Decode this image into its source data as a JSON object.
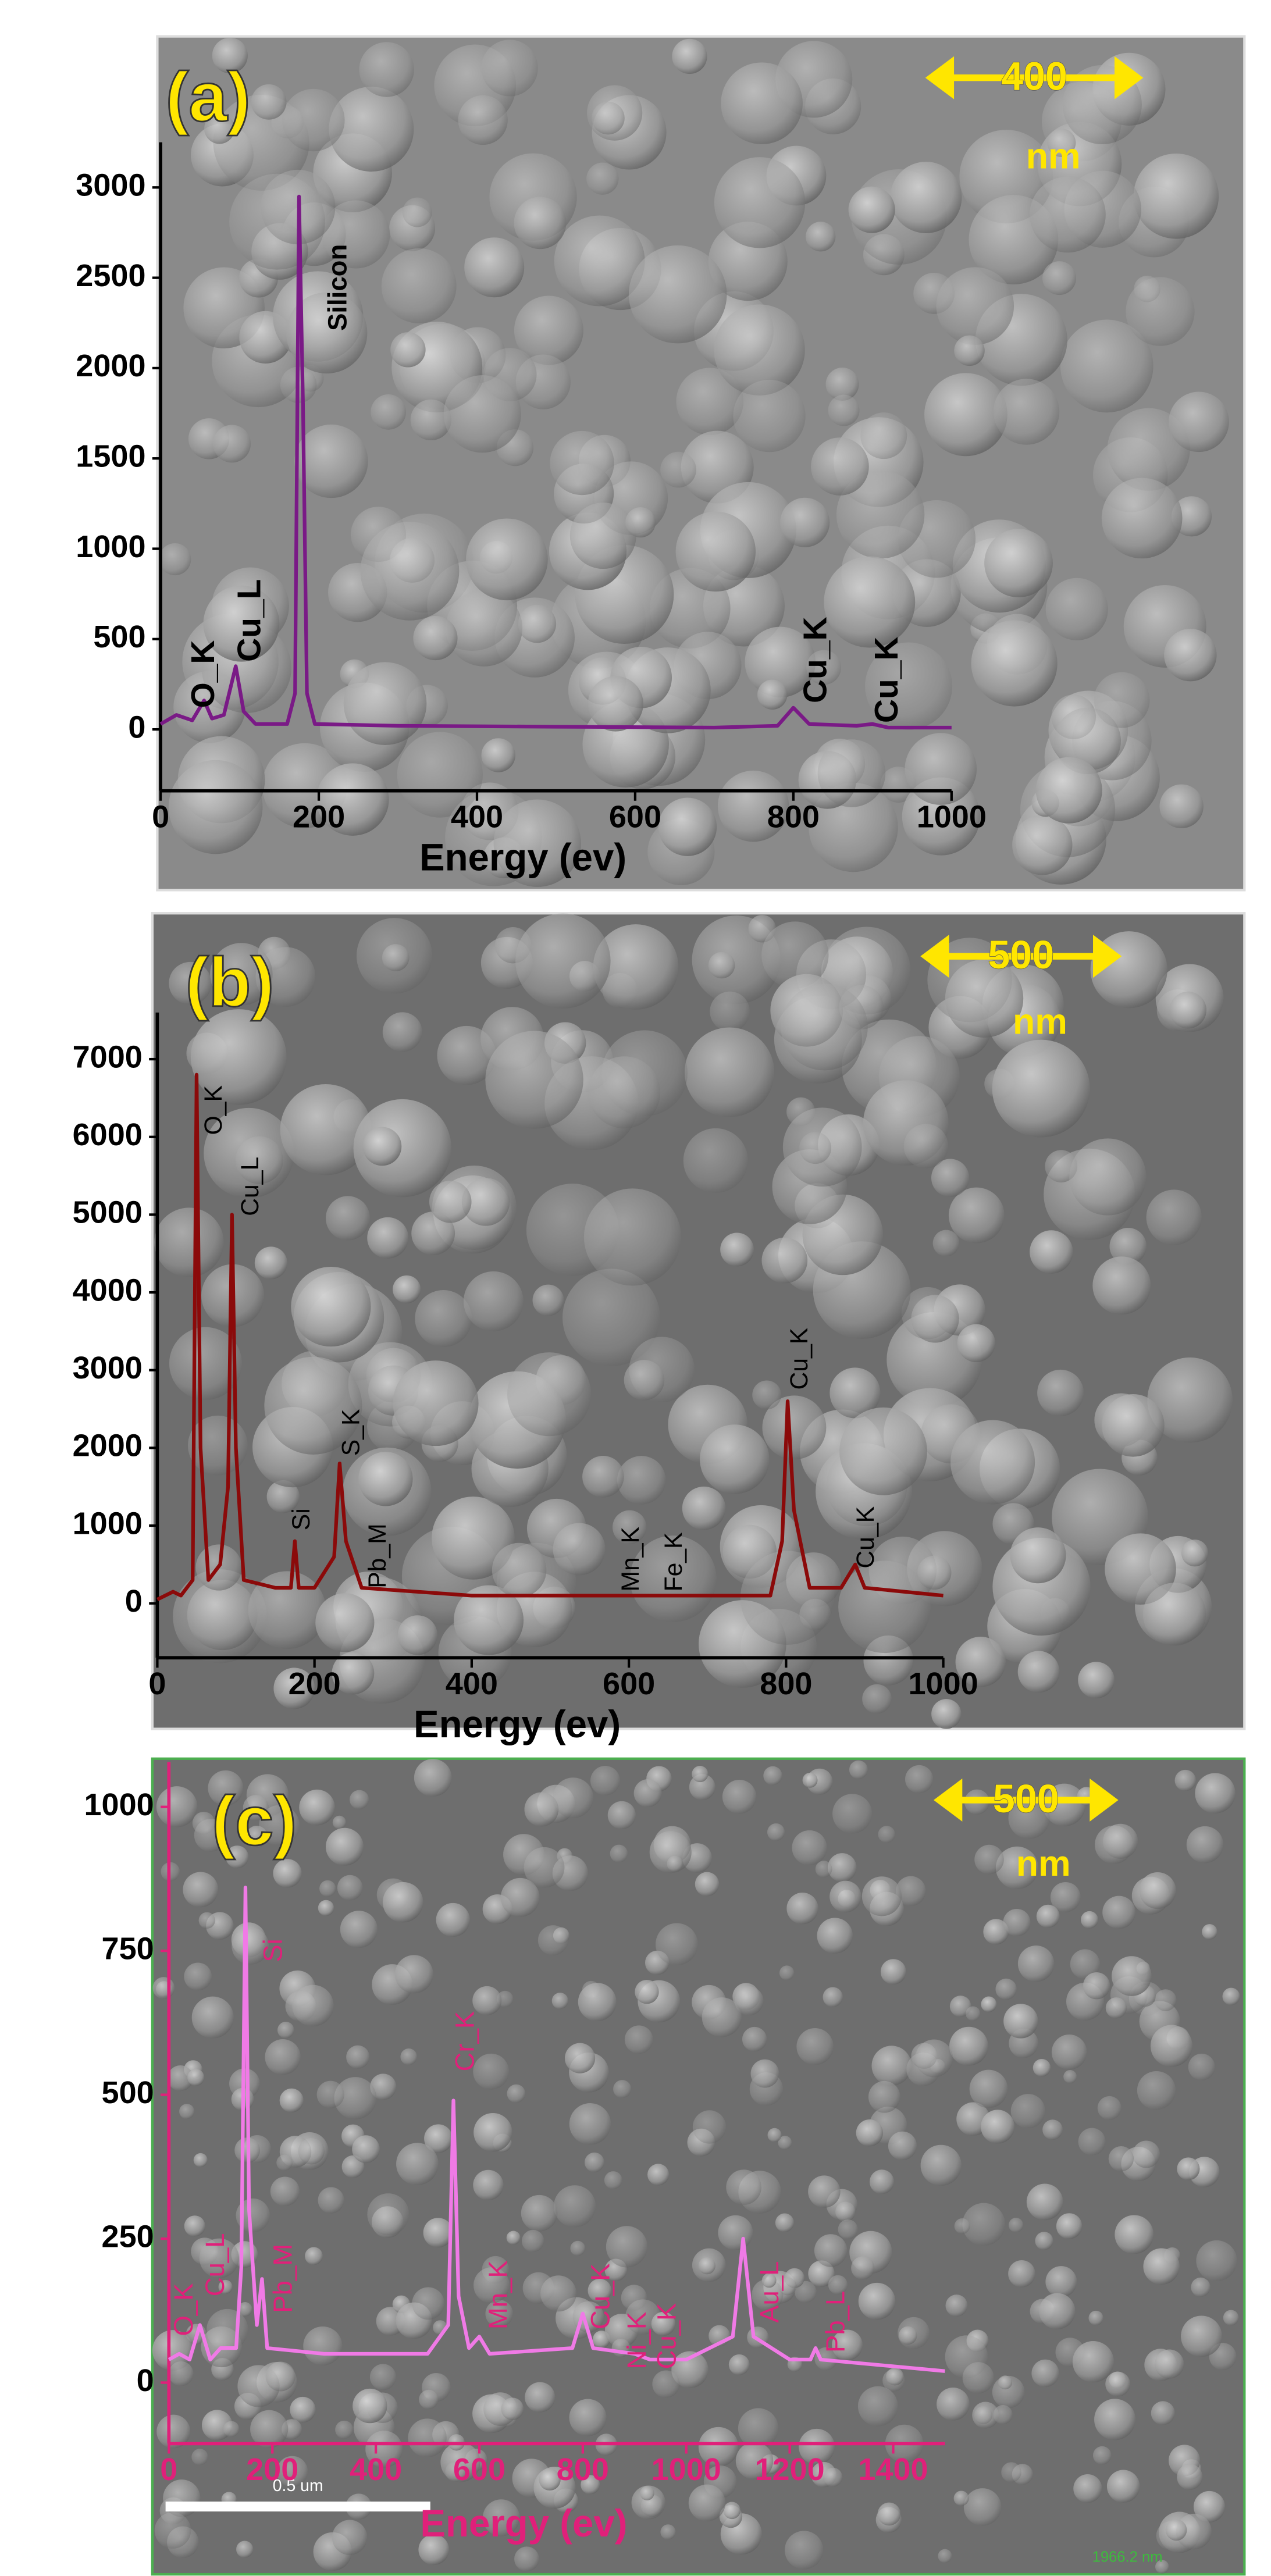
{
  "chart_data": [
    {
      "type": "line",
      "panel_label": "(a)",
      "scale_label": "400",
      "scale_unit": "nm",
      "x_label": "Energy (ev)",
      "color": "#7a1a86",
      "x": [
        0,
        20,
        40,
        55,
        65,
        80,
        95,
        105,
        120,
        160,
        170,
        175,
        180,
        185,
        195,
        300,
        500,
        700,
        780,
        800,
        820,
        880,
        900,
        920,
        1000
      ],
      "values": [
        30,
        80,
        50,
        160,
        60,
        80,
        350,
        100,
        30,
        30,
        200,
        2950,
        1800,
        200,
        30,
        20,
        15,
        10,
        20,
        120,
        30,
        20,
        30,
        10,
        10
      ],
      "xlim": [
        0,
        1000
      ],
      "ylim": [
        -340,
        3250
      ],
      "xticks": [
        0,
        200,
        400,
        600,
        800,
        1000
      ],
      "yticks": [
        0,
        500,
        1000,
        1500,
        2000,
        2500,
        3000
      ],
      "annotations": [
        "O_K",
        "Cu_L",
        "Silicon",
        "Cu_K",
        "Cu_K"
      ]
    },
    {
      "type": "line",
      "panel_label": "(b)",
      "scale_label": "500",
      "scale_unit": "nm",
      "x_label": "Energy (ev)",
      "color": "#8b0a0a",
      "x": [
        0,
        20,
        30,
        45,
        50,
        55,
        65,
        80,
        90,
        95,
        100,
        110,
        150,
        170,
        175,
        180,
        200,
        225,
        232,
        240,
        260,
        400,
        600,
        780,
        795,
        802,
        810,
        830,
        870,
        888,
        900,
        1000
      ],
      "values": [
        50,
        150,
        100,
        300,
        6800,
        2000,
        300,
        500,
        1500,
        5000,
        2000,
        300,
        200,
        200,
        800,
        200,
        200,
        600,
        1800,
        800,
        200,
        100,
        100,
        100,
        800,
        2600,
        1200,
        200,
        200,
        500,
        200,
        100
      ],
      "xlim": [
        0,
        1000
      ],
      "ylim": [
        -700,
        7600
      ],
      "xticks": [
        0,
        200,
        400,
        600,
        800,
        1000
      ],
      "yticks": [
        0,
        1000,
        2000,
        3000,
        4000,
        5000,
        6000,
        7000
      ],
      "annotations": [
        "O_K",
        "Cu_L",
        "Si",
        "S_K",
        "Pb_M",
        "Mn_K",
        "Fe_K",
        "Cu_K",
        "Cu_K"
      ]
    },
    {
      "type": "line",
      "panel_label": "(c)",
      "scale_label": "500",
      "scale_unit": "nm",
      "x_label": "Energy (ev)",
      "scale_bar_label": "0.5 um",
      "image_width_label": "1966.2 nm",
      "color": "#f07ae6",
      "x": [
        0,
        20,
        40,
        60,
        80,
        100,
        130,
        140,
        148,
        155,
        170,
        180,
        190,
        300,
        500,
        540,
        550,
        560,
        580,
        600,
        620,
        780,
        800,
        820,
        900,
        930,
        1000,
        1090,
        1110,
        1130,
        1200,
        1240,
        1250,
        1260,
        1500
      ],
      "values": [
        40,
        50,
        40,
        100,
        40,
        60,
        60,
        200,
        860,
        300,
        100,
        180,
        60,
        50,
        50,
        100,
        490,
        150,
        60,
        80,
        50,
        60,
        120,
        60,
        50,
        40,
        40,
        80,
        250,
        80,
        40,
        40,
        60,
        40,
        20
      ],
      "xlim": [
        0,
        1500
      ],
      "ylim": [
        -106,
        1078
      ],
      "xticks": [
        0,
        200,
        400,
        600,
        800,
        1000,
        1200,
        1400
      ],
      "yticks": [
        0,
        250,
        500,
        750,
        1000
      ],
      "annotations": [
        "O_K",
        "Cu_L",
        "Pb_M",
        "Si",
        "Cr_K",
        "Mn_K",
        "Cu_K",
        "Ni_K",
        "Cu_K",
        "Au_L",
        "Pb_L"
      ]
    }
  ]
}
